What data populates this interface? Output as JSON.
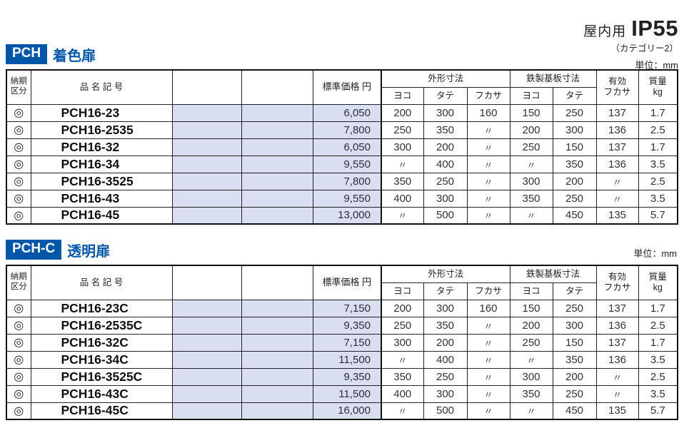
{
  "colors": {
    "accent": "#0057A8",
    "cell_blue": "#D9DEF0"
  },
  "header_right": {
    "usage": "屋内用",
    "ip": "IP55",
    "category": "（カテゴリー2）",
    "unit": "単位：mm"
  },
  "table_header": {
    "delivery_l1": "納期",
    "delivery_l2": "区分",
    "product": "品 名 記 号",
    "price": "標準価格 円",
    "outer_dims": "外形寸法",
    "steel_base_dims": "鉄製基板寸法",
    "yoko": "ヨコ",
    "tate": "タテ",
    "fukasa": "フカサ",
    "steel_yoko": "ヨコ",
    "steel_tate": "タテ",
    "eff_l1": "有効",
    "eff_l2": "フカサ",
    "mass_l1": "質量",
    "mass_l2": "kg"
  },
  "sections": [
    {
      "badge": "PCH",
      "title": "着色扉",
      "unit_note": "",
      "rows": [
        [
          "◎",
          "PCH16-23",
          "",
          "",
          "6,050",
          "200",
          "300",
          "160",
          "150",
          "250",
          "137",
          "1.7"
        ],
        [
          "◎",
          "PCH16-2535",
          "",
          "",
          "7,800",
          "250",
          "350",
          "〃",
          "200",
          "300",
          "136",
          "2.5"
        ],
        [
          "◎",
          "PCH16-32",
          "",
          "",
          "6,050",
          "300",
          "200",
          "〃",
          "250",
          "150",
          "137",
          "1.7"
        ],
        [
          "◎",
          "PCH16-34",
          "",
          "",
          "9,550",
          "〃",
          "400",
          "〃",
          "〃",
          "350",
          "136",
          "3.5"
        ],
        [
          "◎",
          "PCH16-3525",
          "",
          "",
          "7,800",
          "350",
          "250",
          "〃",
          "300",
          "200",
          "〃",
          "2.5"
        ],
        [
          "◎",
          "PCH16-43",
          "",
          "",
          "9,550",
          "400",
          "300",
          "〃",
          "350",
          "250",
          "〃",
          "3.5"
        ],
        [
          "◎",
          "PCH16-45",
          "",
          "",
          "13,000",
          "〃",
          "500",
          "〃",
          "〃",
          "450",
          "135",
          "5.7"
        ]
      ]
    },
    {
      "badge": "PCH-C",
      "title": "透明扉",
      "unit_note": "単位：mm",
      "rows": [
        [
          "◎",
          "PCH16-23C",
          "",
          "",
          "7,150",
          "200",
          "300",
          "160",
          "150",
          "250",
          "137",
          "1.7"
        ],
        [
          "◎",
          "PCH16-2535C",
          "",
          "",
          "9,350",
          "250",
          "350",
          "〃",
          "200",
          "300",
          "136",
          "2.5"
        ],
        [
          "◎",
          "PCH16-32C",
          "",
          "",
          "7,150",
          "300",
          "200",
          "〃",
          "250",
          "150",
          "137",
          "1.7"
        ],
        [
          "◎",
          "PCH16-34C",
          "",
          "",
          "11,500",
          "〃",
          "400",
          "〃",
          "〃",
          "350",
          "136",
          "3.5"
        ],
        [
          "◎",
          "PCH16-3525C",
          "",
          "",
          "9,350",
          "350",
          "250",
          "〃",
          "300",
          "200",
          "〃",
          "2.5"
        ],
        [
          "◎",
          "PCH16-43C",
          "",
          "",
          "11,500",
          "400",
          "300",
          "〃",
          "350",
          "250",
          "〃",
          "3.5"
        ],
        [
          "◎",
          "PCH16-45C",
          "",
          "",
          "16,000",
          "〃",
          "500",
          "〃",
          "〃",
          "450",
          "135",
          "5.7"
        ]
      ]
    }
  ]
}
